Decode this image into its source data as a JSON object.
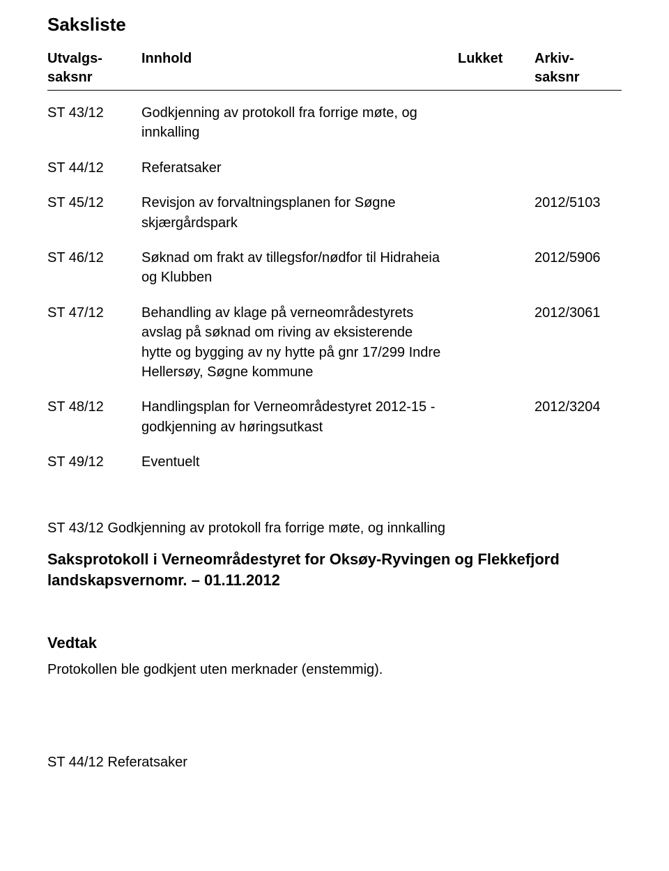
{
  "title": "Saksliste",
  "columns": {
    "id_line1": "Utvalgs-",
    "id_line2": "saksnr",
    "content": "Innhold",
    "closed": "Lukket",
    "arkiv_line1": "Arkiv-",
    "arkiv_line2": "saksnr"
  },
  "rows": [
    {
      "id": "ST 43/12",
      "content": "Godkjenning av protokoll fra forrige møte, og innkalling",
      "arkiv": ""
    },
    {
      "id": "ST 44/12",
      "content": "Referatsaker",
      "arkiv": ""
    },
    {
      "id": "ST 45/12",
      "content": "Revisjon av forvaltningsplanen for Søgne skjærgårdspark",
      "arkiv": "2012/5103"
    },
    {
      "id": "ST 46/12",
      "content": "Søknad om frakt av tillegsfor/nødfor til Hidraheia og Klubben",
      "arkiv": "2012/5906"
    },
    {
      "id": "ST 47/12",
      "content": "Behandling av klage på verneområdestyrets avslag på søknad om riving av eksisterende hytte og bygging av ny hytte på gnr 17/299 Indre Hellersøy, Søgne kommune",
      "arkiv": "2012/3061"
    },
    {
      "id": "ST 48/12",
      "content": "Handlingsplan for Verneområdestyret 2012-15 - godkjenning av høringsutkast",
      "arkiv": "2012/3204"
    },
    {
      "id": "ST 49/12",
      "content": "Eventuelt",
      "arkiv": ""
    }
  ],
  "section_heading": "ST 43/12 Godkjenning av protokoll fra forrige møte, og innkalling",
  "protocol_heading": "Saksprotokoll i Verneområdestyret for Oksøy-Ryvingen og Flekkefjord landskapsvernomr. – 01.11.2012",
  "vedtak_label": "Vedtak",
  "vedtak_body": "Protokollen ble godkjent uten merknader (enstemmig).",
  "footnote": "ST 44/12 Referatsaker"
}
